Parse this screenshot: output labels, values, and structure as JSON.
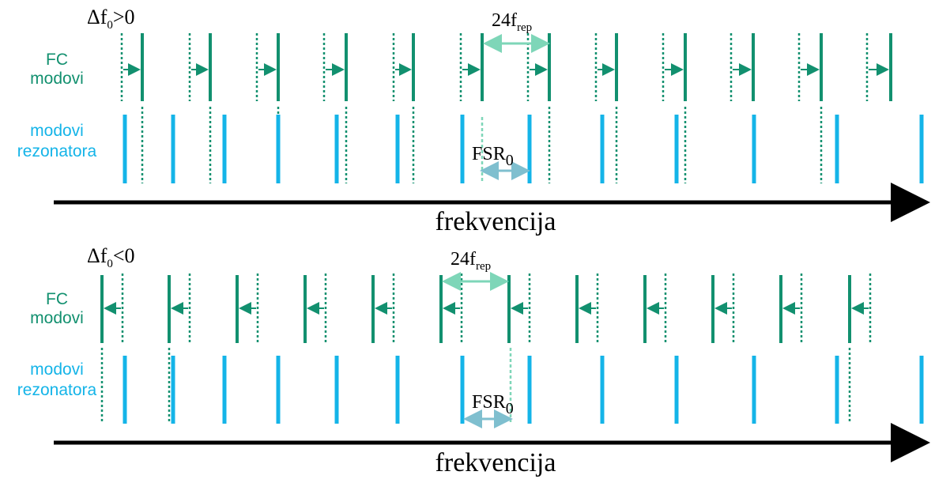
{
  "colors": {
    "fc": "#12906f",
    "resonator": "#14b4e8",
    "annotation": "#7ed6b8",
    "fsr": "#7fbfcf",
    "axis": "#000000"
  },
  "panels": [
    {
      "id": "positive",
      "offset_delta": "Δf",
      "offset_sub": "0",
      "offset_rel": ">0",
      "fc_label_line1": "FC",
      "fc_label_line2": "modovi",
      "res_label_line1": "modovi",
      "res_label_line2": "rezonatora",
      "rep_main": "24f",
      "rep_sub": "rep",
      "fsr_main": "FSR",
      "fsr_sub": "0",
      "axis_label": "frekvencija"
    },
    {
      "id": "negative",
      "offset_delta": "Δf",
      "offset_sub": "0",
      "offset_rel": "<0",
      "fc_label_line1": "FC",
      "fc_label_line2": "modovi",
      "res_label_line1": "modovi",
      "res_label_line2": "rezonatora",
      "rep_main": "24f",
      "rep_sub": "rep",
      "fsr_main": "FSR",
      "fsr_sub": "0",
      "axis_label": "frekvencija"
    }
  ]
}
